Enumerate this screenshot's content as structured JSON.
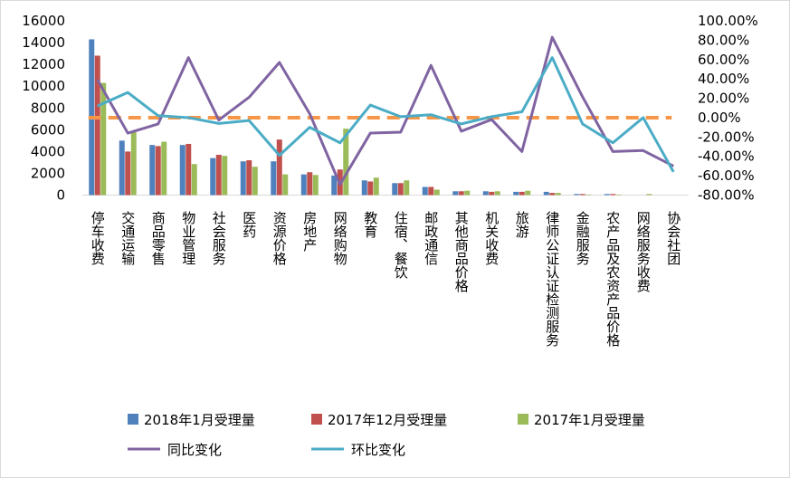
{
  "chart_data": {
    "type": "bar",
    "title": "",
    "categories": [
      "停车收费",
      "交通运输",
      "商品零售",
      "物业管理",
      "社会服务",
      "医药",
      "资源价格",
      "房地产",
      "网络购物",
      "教育",
      "住宿、餐饮",
      "邮政通信",
      "其他商品价格",
      "机关收费",
      "旅游",
      "律师公证认证检测服务",
      "金融服务",
      "农产品及农资产品价格",
      "网络服务收费",
      "协会社团"
    ],
    "left_axis": {
      "range": [
        0,
        16000
      ],
      "ticks": [
        "0",
        "2000",
        "4000",
        "6000",
        "8000",
        "10000",
        "12000",
        "14000",
        "16000"
      ],
      "tick_values": [
        0,
        2000,
        4000,
        6000,
        8000,
        10000,
        12000,
        14000,
        16000
      ]
    },
    "right_axis": {
      "range": [
        -80,
        100
      ],
      "ticks": [
        "-80.00%",
        "-60.00%",
        "-40.00%",
        "-20.00%",
        "0.00%",
        "20.00%",
        "40.00%",
        "60.00%",
        "80.00%",
        "100.00%"
      ],
      "tick_values": [
        -80,
        -60,
        -40,
        -20,
        0,
        20,
        40,
        60,
        80,
        100
      ]
    },
    "series": [
      {
        "name": "2018年1月受理量",
        "type": "bar",
        "axis": "left",
        "color": "#4f81bd",
        "values": [
          14300,
          5000,
          4600,
          4600,
          3400,
          3100,
          3100,
          1900,
          1800,
          1350,
          1100,
          750,
          350,
          350,
          300,
          300,
          100,
          100,
          0,
          0
        ]
      },
      {
        "name": "2017年12月受理量",
        "type": "bar",
        "axis": "left",
        "color": "#c0504d",
        "values": [
          12800,
          4000,
          4500,
          4700,
          3700,
          3200,
          5100,
          2100,
          2350,
          1250,
          1100,
          750,
          350,
          300,
          300,
          200,
          100,
          100,
          0,
          0
        ]
      },
      {
        "name": "2017年1月受理量",
        "type": "bar",
        "axis": "left",
        "color": "#9bbb59",
        "values": [
          10300,
          5800,
          4900,
          2850,
          3600,
          2600,
          1900,
          1850,
          6100,
          1600,
          1350,
          500,
          400,
          350,
          400,
          200,
          50,
          50,
          100,
          0
        ]
      },
      {
        "name": "同比变化",
        "type": "line",
        "axis": "right",
        "color": "#8064a2",
        "values": [
          39,
          -16,
          -6.5,
          62,
          -2.5,
          21,
          57,
          4,
          -69,
          -16,
          -15,
          54,
          -14,
          -2,
          -35,
          83,
          21.5,
          -35,
          -34,
          -50
        ]
      },
      {
        "name": "环比变化",
        "type": "line",
        "axis": "right",
        "color": "#4bacc6",
        "values": [
          12,
          26,
          2,
          0,
          -6,
          -3,
          -39,
          -10,
          -26,
          13,
          1,
          3,
          -6.5,
          1,
          6,
          62,
          -6.5,
          -26,
          0,
          -56
        ]
      }
    ],
    "reference_line": {
      "axis": "right",
      "value": 0,
      "color": "#f79646",
      "style": "dashed"
    },
    "legend": {
      "placement": "bottom"
    },
    "grid": false
  }
}
